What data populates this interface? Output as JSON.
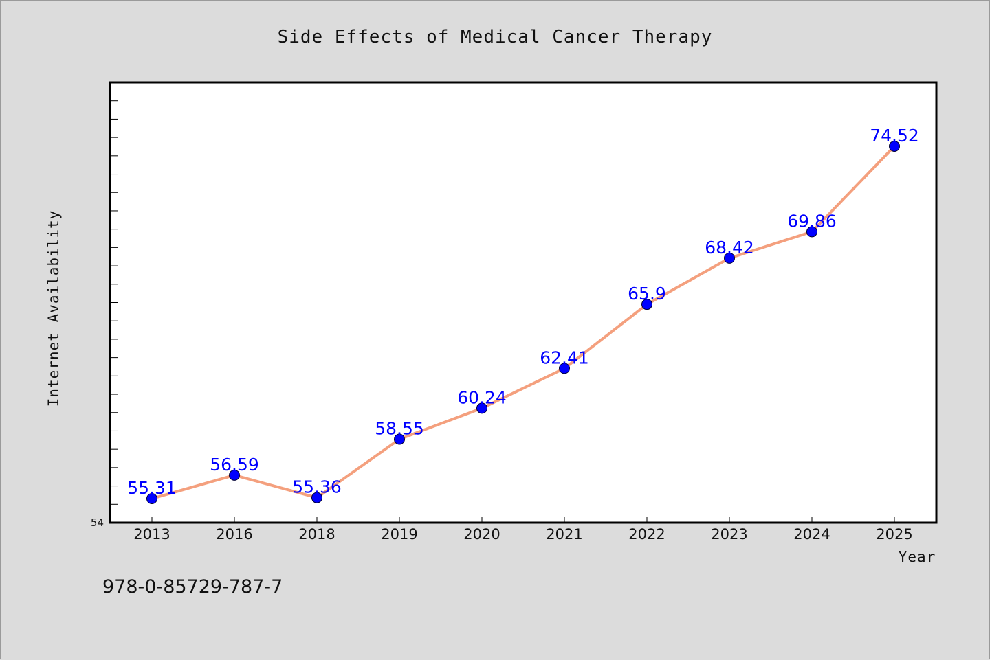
{
  "chart_data": {
    "type": "line",
    "title": "Side Effects of Medical Cancer Therapy",
    "xlabel": "Year",
    "ylabel": "Internet Availability",
    "categories": [
      "2013",
      "2016",
      "2018",
      "2019",
      "2020",
      "2021",
      "2022",
      "2023",
      "2024",
      "2025"
    ],
    "series": [
      {
        "values": [
          55.31,
          56.59,
          55.36,
          58.55,
          60.24,
          62.41,
          65.9,
          68.42,
          69.86,
          74.52
        ],
        "labels": [
          "55.31",
          "56.59",
          "55.36",
          "58.55",
          "60.24",
          "62.41",
          "65.9",
          "68.42",
          "69.86",
          "74.52"
        ],
        "line_color": "#f4a07e",
        "marker_color": "#0000ff"
      }
    ],
    "ylim": [
      54,
      78
    ],
    "y_tick_labels": [
      "54"
    ],
    "grid": false,
    "legend": "none"
  },
  "footnote": "978-0-85729-787-7",
  "colors": {
    "background": "#dcdcdc",
    "plot_background": "#ffffff",
    "label_color": "#0000ff"
  }
}
